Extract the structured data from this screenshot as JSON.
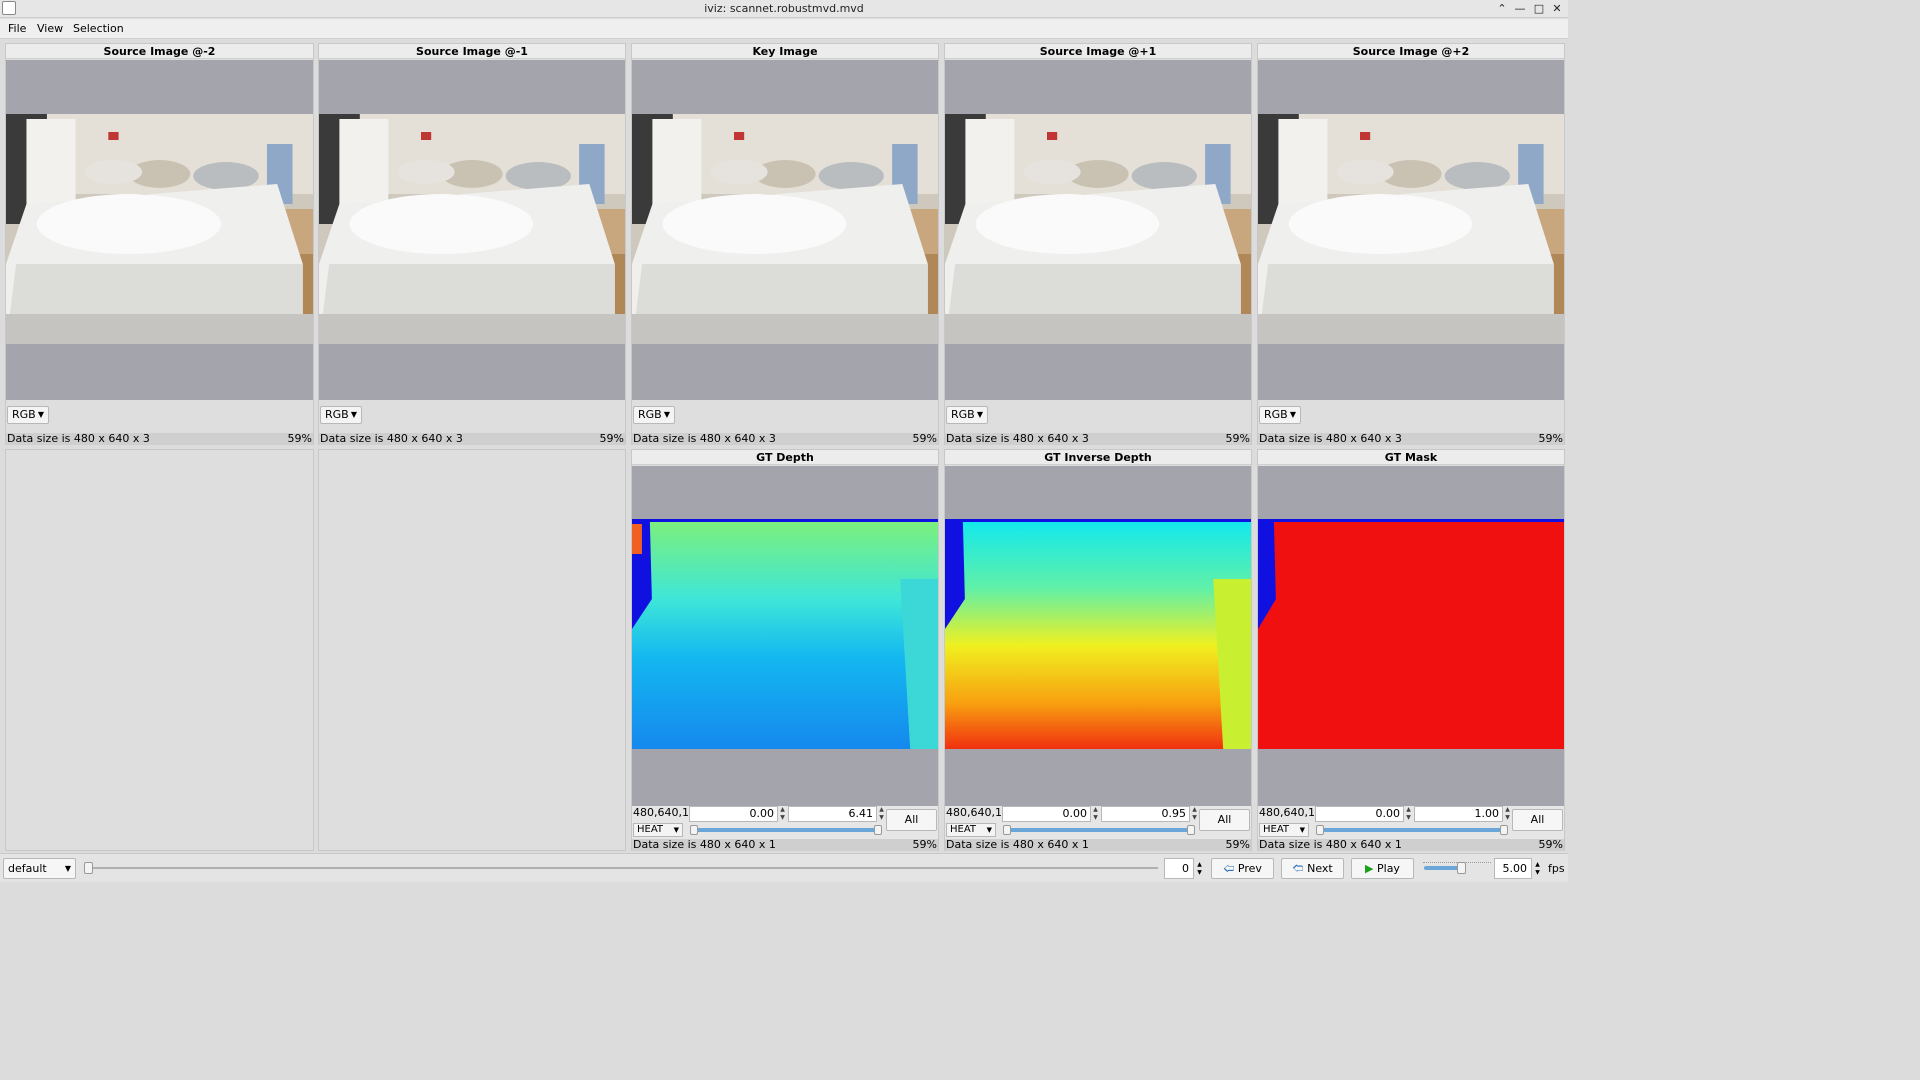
{
  "window": {
    "title": "iviz: scannet.robustmvd.mvd"
  },
  "menu": {
    "file": "File",
    "view": "View",
    "selection": "Selection"
  },
  "top_panels": [
    {
      "title": "Source Image @-2",
      "mode": "RGB",
      "data_size": "Data size is 480 x 640 x 3",
      "zoom": "59%"
    },
    {
      "title": "Source Image @-1",
      "mode": "RGB",
      "data_size": "Data size is 480 x 640 x 3",
      "zoom": "59%"
    },
    {
      "title": "Key Image",
      "mode": "RGB",
      "data_size": "Data size is 480 x 640 x 3",
      "zoom": "59%"
    },
    {
      "title": "Source Image @+1",
      "mode": "RGB",
      "data_size": "Data size is 480 x 640 x 3",
      "zoom": "59%"
    },
    {
      "title": "Source Image @+2",
      "mode": "RGB",
      "data_size": "Data size is 480 x 640 x 3",
      "zoom": "59%"
    }
  ],
  "bottom_panels": [
    {
      "title": "GT Depth",
      "dims": "480,640,1",
      "min": "0.00",
      "max": "6.41",
      "colormap": "HEAT",
      "all_label": "All",
      "data_size": "Data size is 480 x 640 x 1",
      "zoom": "59%"
    },
    {
      "title": "GT Inverse Depth",
      "dims": "480,640,1",
      "min": "0.00",
      "max": "0.95",
      "colormap": "HEAT",
      "all_label": "All",
      "data_size": "Data size is 480 x 640 x 1",
      "zoom": "59%"
    },
    {
      "title": "GT Mask",
      "dims": "480,640,1",
      "min": "0.00",
      "max": "1.00",
      "colormap": "HEAT",
      "all_label": "All",
      "data_size": "Data size is 480 x 640 x 1",
      "zoom": "59%"
    }
  ],
  "bottom_bar": {
    "preset": "default",
    "frame": "0",
    "prev_label": "Prev",
    "next_label": "Next",
    "play_label": "Play",
    "fps_value": "5.00",
    "fps_unit": "fps"
  },
  "colors": {
    "viewport_bg": "#a4a4ac",
    "accent": "#6aa6d8"
  }
}
